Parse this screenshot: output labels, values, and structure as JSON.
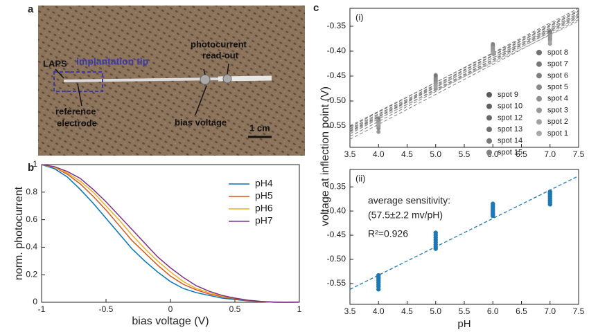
{
  "panel_labels": [
    "a",
    "b",
    "c"
  ],
  "photo": {
    "laps": "LAPS",
    "tip": "implantation tip",
    "readout_1": "photocurrent",
    "readout_2": "read-out",
    "reference_1": "reference",
    "reference_2": "electrode",
    "bias": "bias voltage",
    "scale": "1 cm"
  },
  "chart_data": [
    {
      "type": "line",
      "xlabel": "bias voltage (V)",
      "ylabel": "norm. photocurrent",
      "x": [
        -1,
        -0.9,
        -0.8,
        -0.7,
        -0.6,
        -0.5,
        -0.4,
        -0.3,
        -0.2,
        -0.1,
        0,
        0.1,
        0.2,
        0.3,
        0.4,
        0.5,
        0.6,
        0.7,
        0.8,
        0.9,
        1
      ],
      "xlim": [
        -1,
        1
      ],
      "xticks": [
        -1,
        -0.5,
        0,
        0.5,
        1
      ],
      "ylim": [
        0,
        1
      ],
      "yticks": [
        0,
        0.2,
        0.4,
        0.6,
        0.8,
        1
      ],
      "legend": "upper right",
      "series": [
        {
          "name": "pH4",
          "color": "#0072bd",
          "values": [
            1,
            0.97,
            0.91,
            0.82,
            0.72,
            0.61,
            0.5,
            0.39,
            0.3,
            0.22,
            0.15,
            0.1,
            0.07,
            0.05,
            0.03,
            0.02,
            0.01,
            0.005,
            0,
            0,
            0
          ]
        },
        {
          "name": "pH5",
          "color": "#d95319",
          "values": [
            1,
            0.98,
            0.93,
            0.86,
            0.77,
            0.67,
            0.56,
            0.45,
            0.36,
            0.27,
            0.19,
            0.13,
            0.09,
            0.06,
            0.04,
            0.025,
            0.012,
            0.005,
            0,
            0,
            0
          ]
        },
        {
          "name": "pH6",
          "color": "#edb120",
          "values": [
            1,
            0.98,
            0.94,
            0.88,
            0.8,
            0.7,
            0.6,
            0.49,
            0.39,
            0.3,
            0.22,
            0.15,
            0.1,
            0.07,
            0.045,
            0.03,
            0.015,
            0.006,
            0.001,
            0,
            0
          ]
        },
        {
          "name": "pH7",
          "color": "#7e2f8e",
          "values": [
            1,
            0.985,
            0.95,
            0.9,
            0.82,
            0.73,
            0.63,
            0.53,
            0.43,
            0.33,
            0.25,
            0.18,
            0.12,
            0.08,
            0.05,
            0.03,
            0.015,
            0.007,
            0.002,
            0,
            0.002
          ]
        }
      ]
    },
    {
      "type": "scatter",
      "annotation": "(i)",
      "ylabel": "voltage at inflection point (V)",
      "fit": true,
      "x": [
        4,
        5,
        6,
        7
      ],
      "xlim": [
        3.5,
        7.5
      ],
      "xticks": [
        3.5,
        {
          "value": 4,
          "label": "4.0"
        },
        4.5,
        {
          "value": 5,
          "label": "5.0"
        },
        5.5,
        {
          "value": 6,
          "label": "6.0"
        },
        6.5,
        {
          "value": 7,
          "label": "7.0"
        },
        7.5
      ],
      "ylim": [
        -0.593,
        -0.314
      ],
      "yticks": [
        -0.55,
        {
          "value": -0.5,
          "label": "-0.50"
        },
        -0.45,
        {
          "value": -0.4,
          "label": "-0.40"
        },
        -0.35
      ],
      "series": [
        {
          "name": "spot 9",
          "color": "#5a5a5a",
          "values": [
            -0.54,
            -0.455,
            -0.39,
            -0.365
          ]
        },
        {
          "name": "spot 10",
          "color": "#606060",
          "values": [
            -0.545,
            -0.46,
            -0.395,
            -0.37
          ]
        },
        {
          "name": "spot 12",
          "color": "#686868",
          "values": [
            -0.55,
            -0.465,
            -0.4,
            -0.375
          ]
        },
        {
          "name": "spot 13",
          "color": "#707070",
          "values": [
            -0.535,
            -0.45,
            -0.388,
            -0.362
          ]
        },
        {
          "name": "spot 14",
          "color": "#787878",
          "values": [
            -0.555,
            -0.47,
            -0.402,
            -0.378
          ]
        },
        {
          "name": "spot 15",
          "color": "#808080",
          "values": [
            -0.562,
            -0.475,
            -0.405,
            -0.385
          ]
        },
        {
          "name": "spot 8",
          "color": "#707070",
          "values": [
            -0.538,
            -0.448,
            -0.386,
            -0.36
          ]
        },
        {
          "name": "spot 7",
          "color": "#787878",
          "values": [
            -0.542,
            -0.452,
            -0.392,
            -0.366
          ]
        },
        {
          "name": "spot 6",
          "color": "#808080",
          "values": [
            -0.548,
            -0.458,
            -0.396,
            -0.37
          ]
        },
        {
          "name": "spot 5",
          "color": "#888888",
          "values": [
            -0.552,
            -0.462,
            -0.398,
            -0.374
          ]
        },
        {
          "name": "spot 4",
          "color": "#909090",
          "values": [
            -0.544,
            -0.456,
            -0.39,
            -0.368
          ]
        },
        {
          "name": "spot 3",
          "color": "#989898",
          "values": [
            -0.54,
            -0.464,
            -0.394,
            -0.372
          ]
        },
        {
          "name": "spot 2",
          "color": "#a0a0a0",
          "values": [
            -0.55,
            -0.468,
            -0.4,
            -0.38
          ]
        },
        {
          "name": "spot 1",
          "color": "#a8a8a8",
          "values": [
            -0.546,
            -0.472,
            -0.404,
            -0.383
          ]
        }
      ]
    },
    {
      "type": "scatter",
      "annotation": "(ii)",
      "xlabel": "pH",
      "fit": true,
      "color": "#1f77b4",
      "notes": [
        "average sensitivity:",
        "(57.5±2.2 mv/pH)",
        "R²=0.926"
      ],
      "xlim": [
        3.5,
        7.5
      ],
      "xticks": [
        3.5,
        {
          "value": 4,
          "label": "4.0"
        },
        4.5,
        {
          "value": 5,
          "label": "5.0"
        },
        5.5,
        {
          "value": 6,
          "label": "6.0"
        },
        6.5,
        {
          "value": 7,
          "label": "7.0"
        },
        7.5
      ],
      "ylim": [
        -0.593,
        -0.314
      ],
      "yticks": [
        -0.55,
        {
          "value": -0.5,
          "label": "-0.50"
        },
        -0.45,
        {
          "value": -0.4,
          "label": "-0.40"
        },
        -0.35
      ],
      "x": [
        4,
        4,
        4,
        4,
        4,
        4,
        4,
        4,
        5,
        5,
        5,
        5,
        5,
        5,
        5,
        5,
        6,
        6,
        6,
        6,
        6,
        6,
        6,
        6,
        7,
        7,
        7,
        7,
        7,
        7,
        7,
        7
      ],
      "values": [
        -0.533,
        -0.537,
        -0.54,
        -0.544,
        -0.548,
        -0.552,
        -0.556,
        -0.562,
        -0.445,
        -0.45,
        -0.455,
        -0.46,
        -0.465,
        -0.47,
        -0.474,
        -0.478,
        -0.385,
        -0.388,
        -0.392,
        -0.396,
        -0.4,
        -0.404,
        -0.407,
        -0.41,
        -0.36,
        -0.363,
        -0.366,
        -0.37,
        -0.374,
        -0.378,
        -0.382,
        -0.386
      ]
    }
  ]
}
